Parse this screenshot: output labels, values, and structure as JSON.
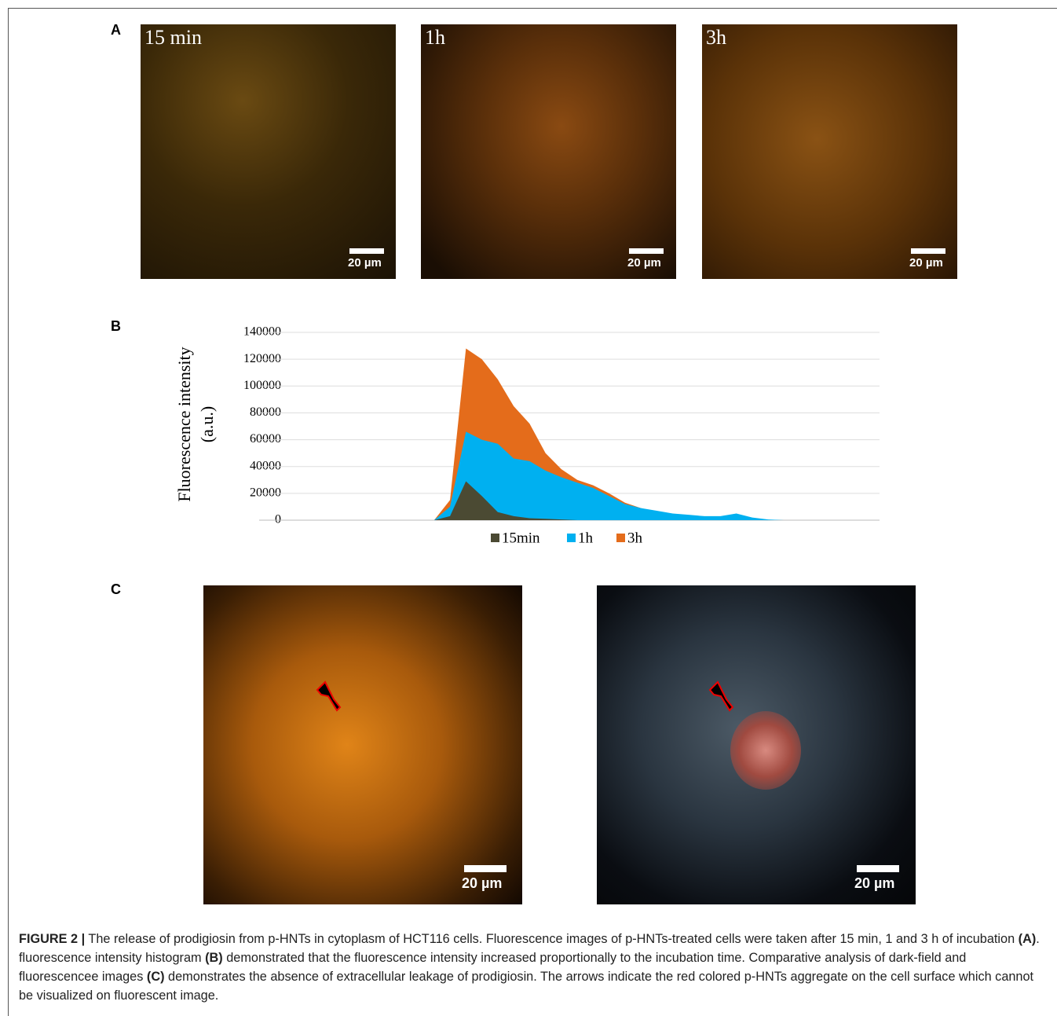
{
  "panels": {
    "A": {
      "letter": "A",
      "images": [
        {
          "label": "15 min",
          "scale": "20 µm"
        },
        {
          "label": "1h",
          "scale": "20 µm"
        },
        {
          "label": "3h",
          "scale": "20 µm"
        }
      ]
    },
    "B": {
      "letter": "B"
    },
    "C": {
      "letter": "C",
      "images": [
        {
          "scale": "20 µm"
        },
        {
          "scale": "20 µm"
        }
      ]
    }
  },
  "chart_data": {
    "type": "area",
    "y_label": [
      "Fluorescence intensity",
      "(a.u.)"
    ],
    "categories": [
      null,
      null,
      null,
      null,
      null,
      null,
      null,
      null,
      null,
      null,
      null,
      null,
      null,
      null,
      null,
      null,
      null,
      null,
      null,
      null,
      null,
      null,
      null,
      null,
      null,
      null,
      null,
      null,
      null,
      null,
      null,
      null,
      null,
      null,
      null,
      null,
      null,
      null,
      null,
      null
    ],
    "series": [
      {
        "name": "15min",
        "color": "#4b4a33",
        "values": [
          0,
          0,
          0,
          0,
          0,
          0,
          0,
          0,
          0,
          0,
          0,
          0,
          3000,
          29000,
          18000,
          6000,
          3000,
          1500,
          1000,
          500,
          0,
          0,
          0,
          0,
          0,
          0,
          0,
          0,
          0,
          0,
          0,
          0,
          0,
          0,
          0,
          0,
          0,
          0,
          0,
          0
        ]
      },
      {
        "name": "1h",
        "color": "#00b0f0",
        "values": [
          0,
          0,
          0,
          0,
          0,
          0,
          0,
          0,
          0,
          0,
          0,
          0,
          10000,
          66000,
          60000,
          57000,
          46000,
          44000,
          37000,
          32000,
          28000,
          24000,
          18000,
          12000,
          9000,
          7000,
          5000,
          4000,
          3000,
          3000,
          5000,
          2000,
          500,
          0,
          0,
          0,
          0,
          0,
          0,
          0
        ]
      },
      {
        "name": "3h",
        "color": "#e46c1b",
        "values": [
          0,
          0,
          0,
          0,
          0,
          0,
          0,
          0,
          0,
          0,
          0,
          0,
          15000,
          128000,
          120000,
          105000,
          85000,
          72000,
          50000,
          38000,
          30000,
          26000,
          20000,
          13000,
          9000,
          6000,
          4000,
          2000,
          1000,
          0,
          0,
          0,
          0,
          0,
          0,
          0,
          0,
          0,
          0,
          0
        ]
      }
    ],
    "ylim": [
      0,
      140000
    ],
    "yticks": [
      0,
      20000,
      40000,
      60000,
      80000,
      100000,
      120000,
      140000
    ],
    "grid": true,
    "legend": "bottom"
  },
  "caption": {
    "parts": [
      "FIGURE 2 |",
      " The release of prodigiosin from p-HNTs in cytoplasm of HCT116 cells. Fluorescence images of p-HNTs-treated cells were taken after 15 min, 1 and 3 h of incubation ",
      "(A)",
      ". fluorescence intensity histogram ",
      "(B)",
      " demonstrated that the fluorescence intensity increased proportionally to the incubation time. Comparative analysis of dark-field and fluorescencee images ",
      "(C)",
      " demonstrates the absence of extracellular leakage of prodigiosin. The arrows indicate the red colored p-HNTs aggregate on the cell surface which cannot be visualized on fluorescent image."
    ]
  }
}
